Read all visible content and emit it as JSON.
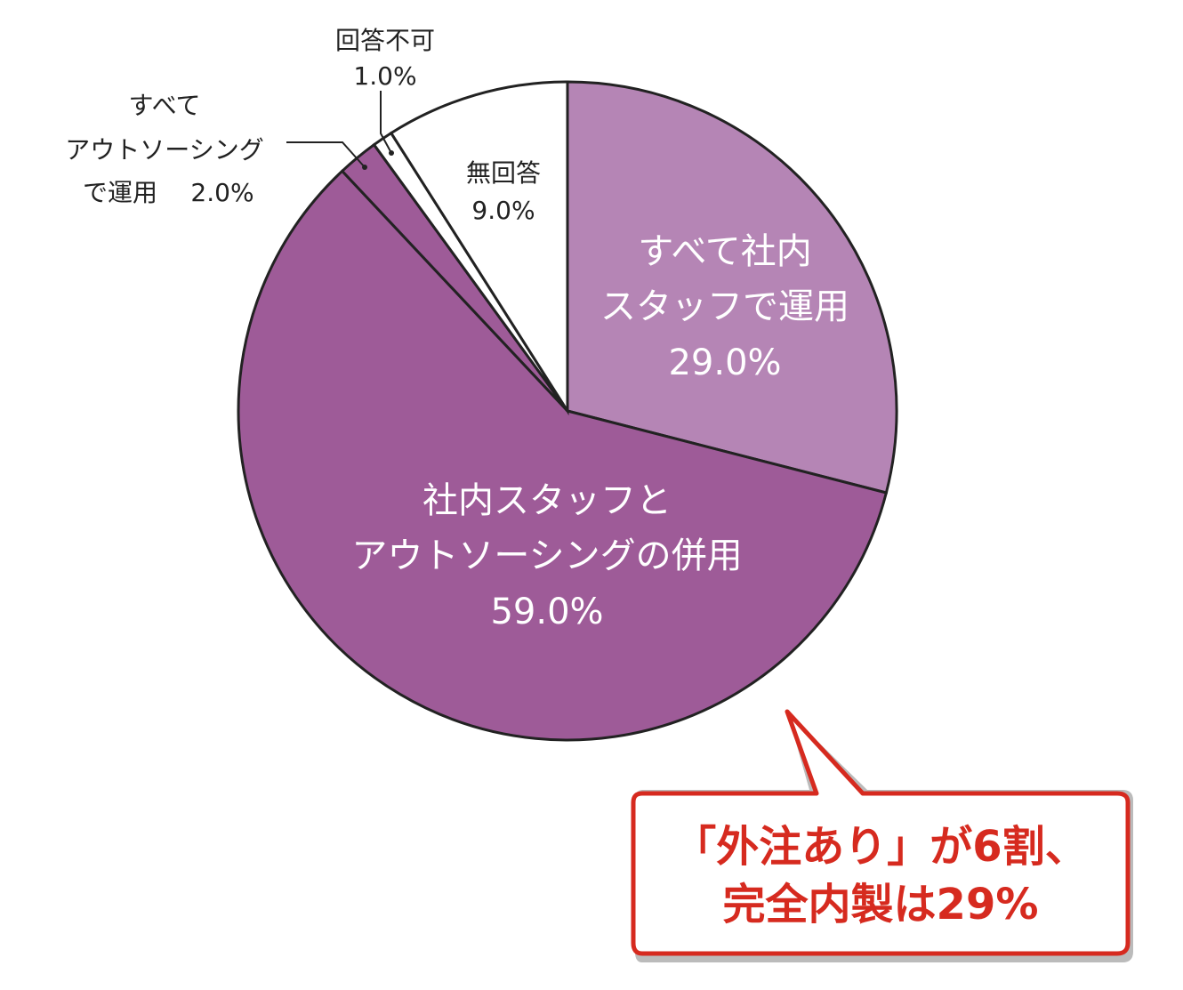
{
  "chart_data": {
    "type": "pie",
    "categories": [
      [
        "すべて社内",
        "スタッフで運用"
      ],
      [
        "社内スタッフと",
        "アウトソーシングの併用"
      ],
      [
        "すべて",
        "アウトソーシング",
        "で運用"
      ],
      [
        "回答不可"
      ],
      [
        "無回答"
      ]
    ],
    "values": [
      29,
      59,
      2,
      1,
      9
    ],
    "value_labels": [
      "29.0%",
      "59.0%",
      "2.0%",
      "1.0%",
      "9.0%"
    ],
    "colors": [
      "#b585b5",
      "#9e5b98",
      "#9e5b98",
      "#ffffff",
      "#ffffff"
    ],
    "annotations": [
      "「外注あり」が6割、",
      "完全内製は29%"
    ]
  }
}
